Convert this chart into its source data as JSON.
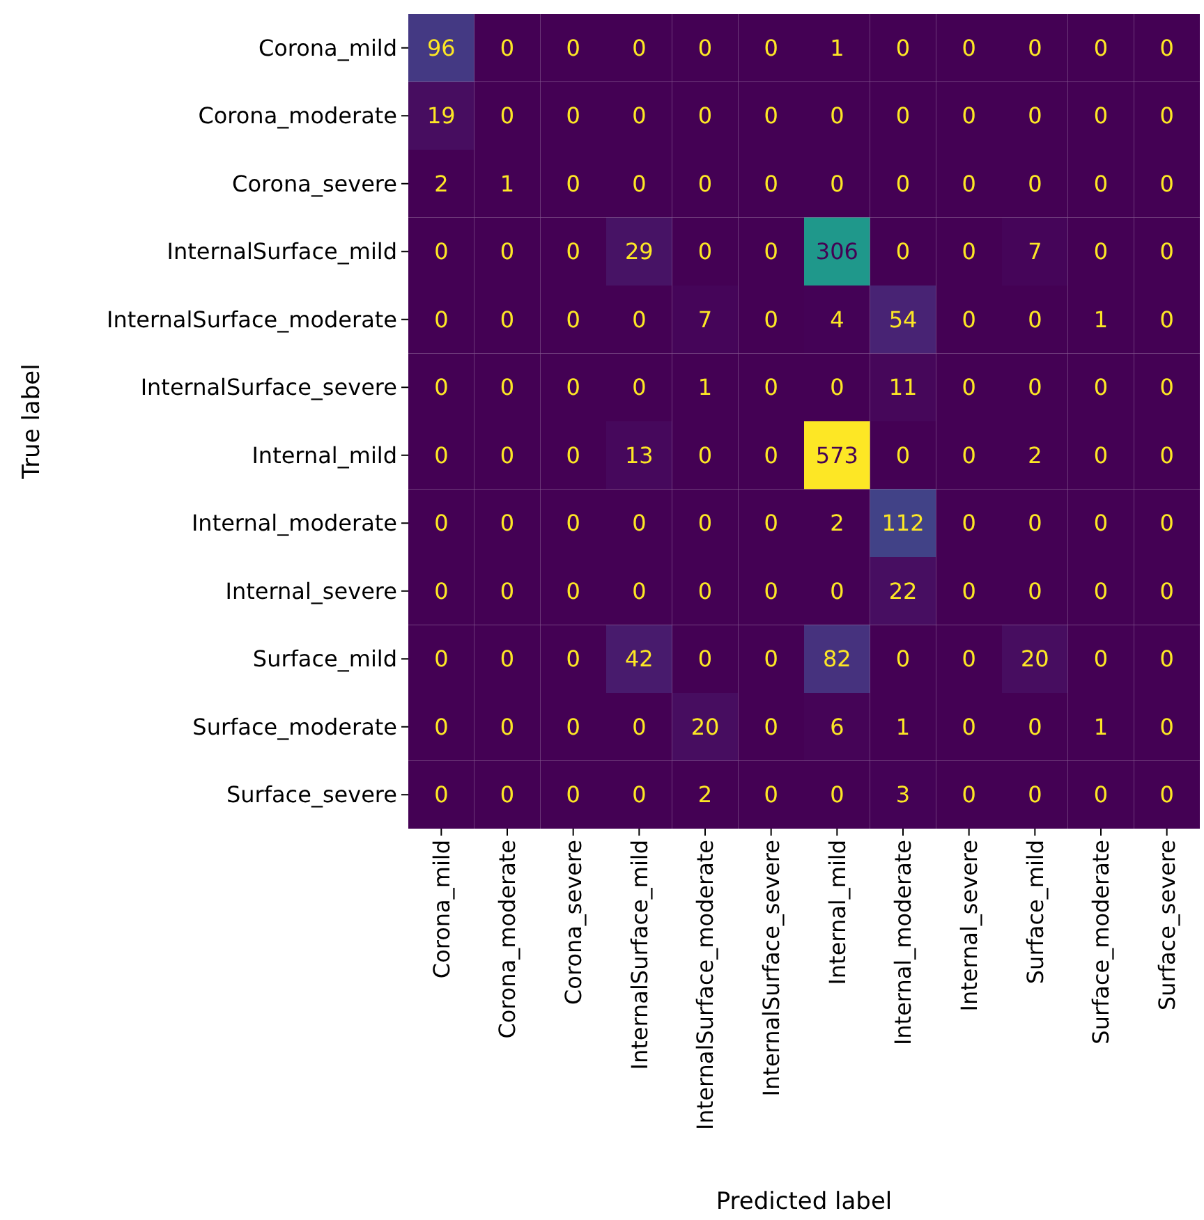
{
  "chart_data": {
    "type": "heatmap",
    "xlabel": "Predicted label",
    "ylabel": "True label",
    "categories": [
      "Corona_mild",
      "Corona_moderate",
      "Corona_severe",
      "InternalSurface_mild",
      "InternalSurface_moderate",
      "InternalSurface_severe",
      "Internal_mild",
      "Internal_moderate",
      "Internal_severe",
      "Surface_mild",
      "Surface_moderate",
      "Surface_severe"
    ],
    "y_categories": [
      "Corona_mild",
      "Corona_moderate",
      "Corona_severe",
      "InternalSurface_mild",
      "InternalSurface_moderate",
      "InternalSurface_severe",
      "Internal_mild",
      "Internal_moderate",
      "Internal_severe",
      "Surface_mild",
      "Surface_moderate",
      "Surface_severe"
    ],
    "cells": [
      [
        96,
        0,
        0,
        0,
        0,
        0,
        1,
        0,
        0,
        0,
        0,
        0
      ],
      [
        19,
        0,
        0,
        0,
        0,
        0,
        0,
        0,
        0,
        0,
        0,
        0
      ],
      [
        2,
        1,
        0,
        0,
        0,
        0,
        0,
        0,
        0,
        0,
        0,
        0
      ],
      [
        0,
        0,
        0,
        29,
        0,
        0,
        306,
        0,
        0,
        7,
        0,
        0
      ],
      [
        0,
        0,
        0,
        0,
        7,
        0,
        4,
        54,
        0,
        0,
        1,
        0
      ],
      [
        0,
        0,
        0,
        0,
        1,
        0,
        0,
        11,
        0,
        0,
        0,
        0
      ],
      [
        0,
        0,
        0,
        13,
        0,
        0,
        573,
        0,
        0,
        2,
        0,
        0
      ],
      [
        0,
        0,
        0,
        0,
        0,
        0,
        2,
        112,
        0,
        0,
        0,
        0
      ],
      [
        0,
        0,
        0,
        0,
        0,
        0,
        0,
        22,
        0,
        0,
        0,
        0
      ],
      [
        0,
        0,
        0,
        42,
        0,
        0,
        82,
        0,
        0,
        20,
        0,
        0
      ],
      [
        0,
        0,
        0,
        0,
        20,
        0,
        6,
        1,
        0,
        0,
        1,
        0
      ],
      [
        0,
        0,
        0,
        0,
        2,
        0,
        0,
        3,
        0,
        0,
        0,
        0
      ]
    ],
    "data_labels": true
  }
}
